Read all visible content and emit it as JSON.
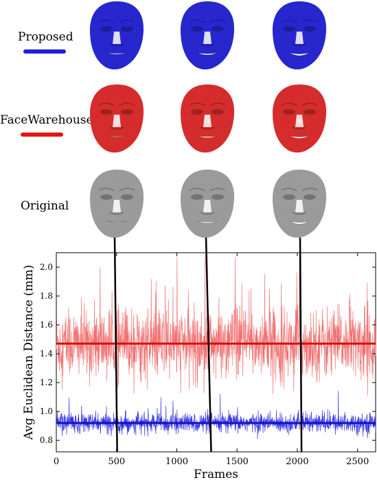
{
  "rows": [
    {
      "label": "Proposed",
      "color": "#1f1fd6",
      "legend": true
    },
    {
      "label": "FaceWarehouse",
      "color": "#e31414",
      "legend": true
    },
    {
      "label": "Original",
      "color": "#9a9a9a",
      "legend": false
    }
  ],
  "colors": {
    "proposed_face": "#2a2ae0",
    "facewarehouse_face": "#e83030",
    "original_face": "#a8a8a8",
    "proposed_series": "#3333e6",
    "facewarehouse_series": "#f07070",
    "facewarehouse_mean": "#d81010",
    "proposed_mean": "#1010c8"
  },
  "chart_data": {
    "type": "line",
    "xlabel": "Frames",
    "ylabel": "Avg Euclidean Distance (mm)",
    "xlim": [
      0,
      2650
    ],
    "ylim": [
      0.72,
      2.1
    ],
    "xticks": [
      0,
      500,
      1000,
      1500,
      2000,
      2500
    ],
    "yticks": [
      0.8,
      1.0,
      1.2,
      1.4,
      1.6,
      1.8,
      2.0
    ],
    "marked_frames": [
      505,
      1285,
      2035
    ],
    "series": [
      {
        "name": "FaceWarehouse",
        "mean": 1.47,
        "range": [
          1.05,
          2.07
        ],
        "n_frames": 2650
      },
      {
        "name": "Proposed",
        "mean": 0.92,
        "range": [
          0.81,
          1.16
        ],
        "n_frames": 2650
      }
    ]
  }
}
